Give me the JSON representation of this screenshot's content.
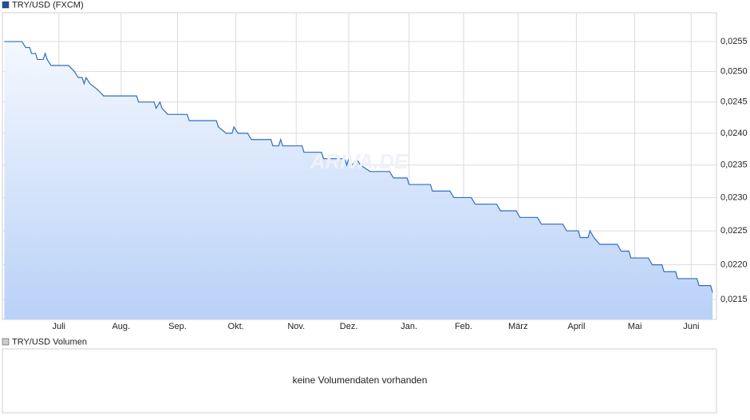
{
  "chart_data": {
    "type": "line",
    "title": "TRY/USD (FXCM)",
    "watermark": "ARIVA.DE",
    "volume_title": "TRY/USD Volumen",
    "volume_note": "keine Volumendaten vorhanden",
    "log_scale": true,
    "grid": true,
    "x": [
      0,
      9,
      11,
      13,
      14,
      16,
      17,
      20,
      21,
      22,
      24,
      33,
      36,
      38,
      40,
      41,
      42,
      44,
      48,
      51,
      68,
      69,
      77,
      78,
      80,
      81,
      84,
      94,
      95,
      109,
      110,
      114,
      117,
      118,
      120,
      125,
      127,
      137,
      138,
      141,
      142,
      143,
      153,
      154,
      163,
      164,
      175,
      176,
      177,
      179,
      181,
      183,
      188,
      198,
      200,
      207,
      208,
      219,
      220,
      229,
      231,
      240,
      242,
      253,
      255,
      263,
      265,
      274,
      276,
      287,
      289,
      295,
      296,
      300,
      301,
      303,
      306,
      315,
      317,
      321,
      322,
      331,
      333,
      338,
      339,
      345,
      346,
      356,
      357,
      363,
      364
    ],
    "series": [
      {
        "name": "TRY/USD (FXCM)",
        "color": "#2f6cc4",
        "values": [
          0.0255,
          0.0255,
          0.0254,
          0.0254,
          0.0253,
          0.0253,
          0.0252,
          0.0252,
          0.0253,
          0.0252,
          0.0251,
          0.0251,
          0.025,
          0.0249,
          0.0249,
          0.0248,
          0.0249,
          0.0248,
          0.0247,
          0.0246,
          0.0246,
          0.0245,
          0.0245,
          0.0244,
          0.0245,
          0.0244,
          0.0243,
          0.0243,
          0.0242,
          0.0242,
          0.0241,
          0.024,
          0.024,
          0.0241,
          0.024,
          0.024,
          0.0239,
          0.0239,
          0.0238,
          0.0238,
          0.0239,
          0.0238,
          0.0238,
          0.0237,
          0.0237,
          0.0236,
          0.0236,
          0.0235,
          0.0236,
          0.0235,
          0.0236,
          0.0235,
          0.0234,
          0.0234,
          0.0233,
          0.0233,
          0.0232,
          0.0232,
          0.0231,
          0.0231,
          0.023,
          0.023,
          0.0229,
          0.0229,
          0.0228,
          0.0228,
          0.0227,
          0.0227,
          0.0226,
          0.0226,
          0.0225,
          0.0225,
          0.0224,
          0.0224,
          0.0225,
          0.0224,
          0.0223,
          0.0223,
          0.0222,
          0.0222,
          0.0221,
          0.0221,
          0.022,
          0.022,
          0.0219,
          0.0219,
          0.0218,
          0.0218,
          0.0217,
          0.0217,
          0.0216
        ]
      }
    ],
    "xlim": [
      -1,
      366
    ],
    "xticks": [
      {
        "value": 28,
        "label": "Juli"
      },
      {
        "value": 60,
        "label": "Aug."
      },
      {
        "value": 89,
        "label": "Sep."
      },
      {
        "value": 119,
        "label": "Okt."
      },
      {
        "value": 150,
        "label": "Nov."
      },
      {
        "value": 177,
        "label": "Dez."
      },
      {
        "value": 208,
        "label": "Jan."
      },
      {
        "value": 236,
        "label": "Feb."
      },
      {
        "value": 264,
        "label": "März"
      },
      {
        "value": 294,
        "label": "April"
      },
      {
        "value": 324,
        "label": "Mai"
      },
      {
        "value": 353,
        "label": "Juni"
      }
    ],
    "ylim": [
      0.02122,
      0.02599
    ],
    "yticks": [
      {
        "value": 0.0215,
        "label": "0,0215"
      },
      {
        "value": 0.022,
        "label": "0,0220"
      },
      {
        "value": 0.0225,
        "label": "0,0225"
      },
      {
        "value": 0.023,
        "label": "0,0230"
      },
      {
        "value": 0.0235,
        "label": "0,0235"
      },
      {
        "value": 0.024,
        "label": "0,0240"
      },
      {
        "value": 0.0245,
        "label": "0,0245"
      },
      {
        "value": 0.025,
        "label": "0,0250"
      },
      {
        "value": 0.0255,
        "label": "0,0255"
      }
    ]
  }
}
